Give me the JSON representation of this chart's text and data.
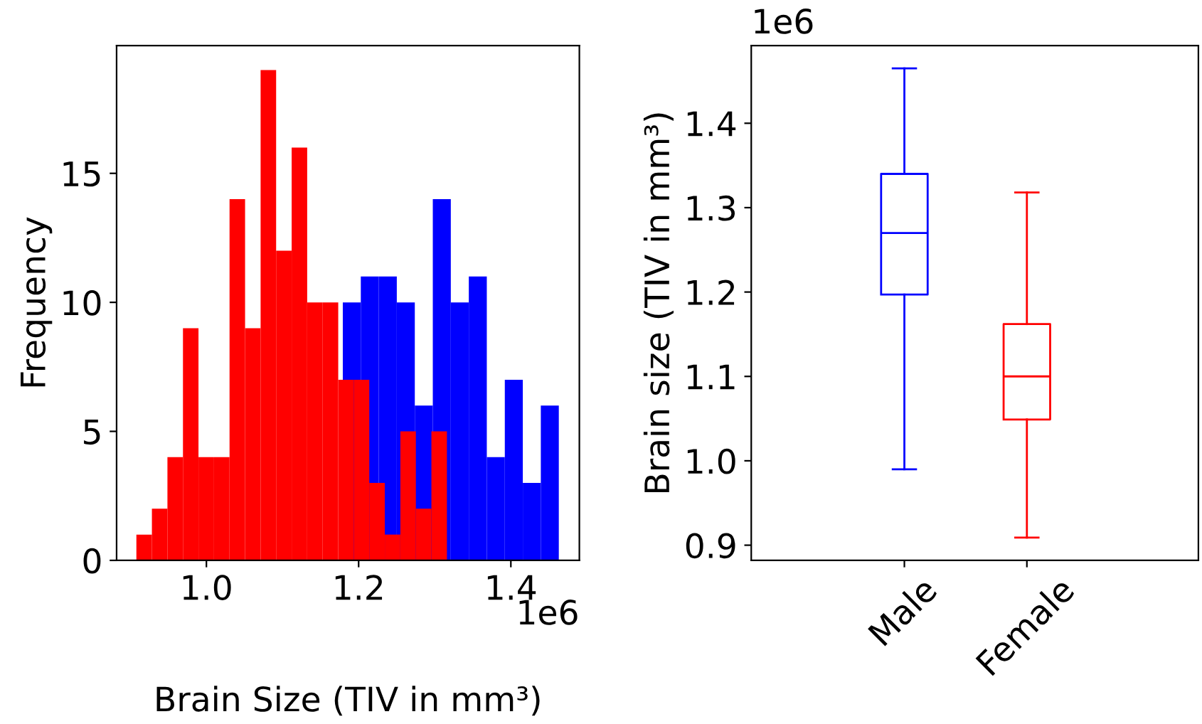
{
  "chart_data": [
    {
      "type": "histogram",
      "xlabel": "Brain Size (TIV in mm³)",
      "ylabel": "Frequency",
      "bins": [
        0.908,
        0.9284,
        0.9488,
        0.9692,
        0.9896,
        1.01,
        1.0304,
        1.0508,
        1.0712,
        1.0916,
        1.112,
        1.1324,
        1.1528,
        1.1732,
        1.1936,
        1.214,
        1.2344,
        1.2548,
        1.2752,
        1.2956,
        1.316
      ],
      "series": [
        {
          "color": "#0000ff",
          "bins": [
            0.99,
            1.01365,
            1.0373,
            1.06095,
            1.0846,
            1.10825,
            1.1319,
            1.15555,
            1.1792,
            1.20285,
            1.2265,
            1.25015,
            1.2738,
            1.29745,
            1.3211,
            1.34475,
            1.3684,
            1.39205,
            1.4157,
            1.43935,
            1.463
          ],
          "values": [
            null,
            null,
            null,
            null,
            null,
            null,
            null,
            null,
            10,
            11,
            11,
            10,
            6,
            14,
            10,
            11,
            4,
            7,
            3,
            6
          ]
        },
        {
          "color": "#ff0000",
          "values": [
            1,
            2,
            4,
            9,
            4,
            4,
            14,
            9,
            19,
            12,
            16,
            10,
            10,
            7,
            7,
            3,
            1,
            5,
            2,
            5
          ]
        }
      ],
      "xlim": [
        0.882,
        1.49
      ],
      "xticks": [
        {
          "value": 1.0,
          "label": "1.0"
        },
        {
          "value": 1.2,
          "label": "1.2"
        },
        {
          "value": 1.4,
          "label": "1.4"
        }
      ],
      "ylim": [
        0,
        19.95
      ],
      "yticks": [
        0,
        5,
        10,
        15
      ],
      "annotations": [
        "1e6"
      ]
    },
    {
      "type": "box",
      "ylabel": "Brain size (TIV in mm³)",
      "categories": [
        "Male",
        "Female"
      ],
      "colors": [
        "#0000ff",
        "#ff0000"
      ],
      "boxes": [
        {
          "low": 0.99,
          "q1": 1.197,
          "median": 1.27,
          "q3": 1.34,
          "high": 1.465
        },
        {
          "low": 0.909,
          "q1": 1.049,
          "median": 1.1,
          "q3": 1.162,
          "high": 1.318
        }
      ],
      "ylim": [
        0.882,
        1.492
      ],
      "yticks": [
        {
          "value": 0.9,
          "label": "0.9"
        },
        {
          "value": 1.0,
          "label": "1.0"
        },
        {
          "value": 1.1,
          "label": "1.1"
        },
        {
          "value": 1.2,
          "label": "1.2"
        },
        {
          "value": 1.3,
          "label": "1.3"
        },
        {
          "value": 1.4,
          "label": "1.4"
        }
      ],
      "annotations": [
        "1e6"
      ]
    }
  ]
}
